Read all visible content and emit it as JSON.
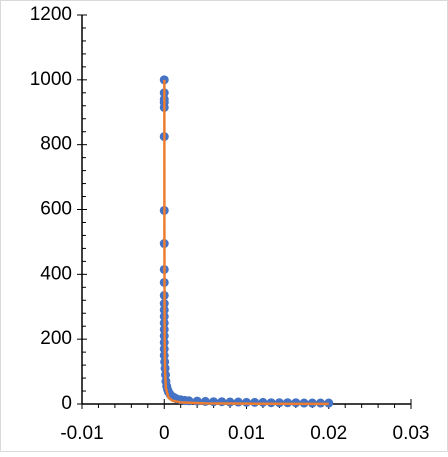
{
  "chart_data": {
    "type": "scatter",
    "series": [
      {
        "mode": "markers",
        "color": "#4472c4",
        "x": [
          0,
          0,
          0,
          0,
          0,
          0,
          0,
          0,
          0,
          0,
          0,
          0,
          0,
          0,
          0,
          0,
          0,
          0,
          0,
          0,
          5e-05,
          0.0001,
          0.00015,
          0.0002,
          0.0003,
          0.0004,
          0.0005,
          0.0007,
          0.0009,
          0.0012,
          0.0015,
          0.002,
          0.0025,
          0.003,
          0.004,
          0.005,
          0.006,
          0.007,
          0.008,
          0.009,
          0.01,
          0.011,
          0.012,
          0.013,
          0.014,
          0.015,
          0.016,
          0.017,
          0.018,
          0.019,
          0.02
        ],
        "values": [
          1000,
          960,
          940,
          930,
          915,
          825,
          597,
          495,
          415,
          375,
          335,
          310,
          290,
          270,
          250,
          230,
          210,
          190,
          170,
          150,
          130,
          110,
          90,
          70,
          55,
          45,
          38,
          30,
          24,
          20,
          16,
          13,
          11,
          10,
          9,
          8,
          7,
          7,
          6,
          6,
          5,
          5,
          5,
          4,
          4,
          4,
          4,
          3,
          3,
          3,
          3
        ]
      },
      {
        "mode": "line",
        "color": "#ed7d31",
        "x": [
          1e-05,
          2e-05,
          5e-05,
          0.0001,
          0.0002,
          0.0005,
          0.001,
          0.002,
          0.005,
          0.01,
          0.02
        ],
        "values": [
          1000,
          500,
          200,
          100,
          50,
          20,
          10,
          5,
          2,
          1,
          0.5
        ]
      }
    ],
    "xlim": [
      -0.01,
      0.03
    ],
    "xticks": [
      -0.01,
      0,
      0.01,
      0.02,
      0.03
    ],
    "ylim": [
      0,
      1200
    ],
    "yticks": [
      0,
      200,
      400,
      600,
      800,
      1000,
      1200
    ],
    "grid": false
  }
}
